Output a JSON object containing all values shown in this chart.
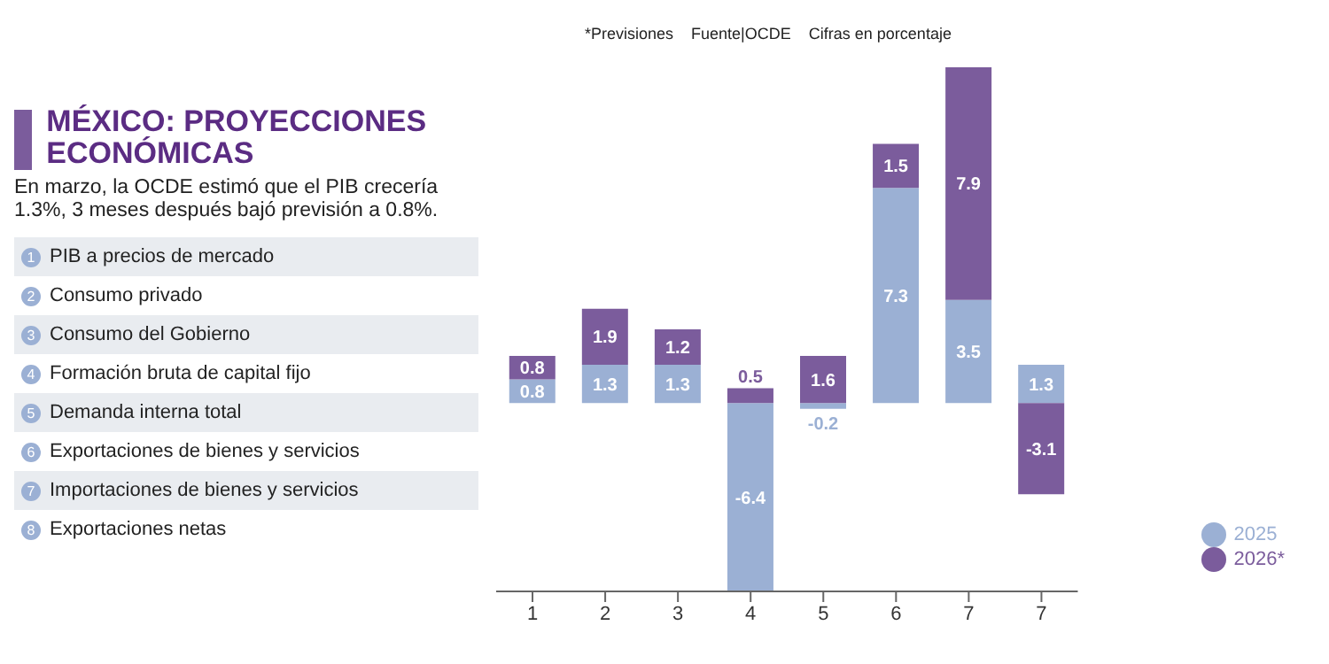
{
  "chart_data": {
    "type": "bar",
    "title": "MÉXICO: PROYECCIONES ECONÓMICAS",
    "subtitle": "En marzo, la OCDE estimó que el PIB crecería 1.3%, 3 meses después bajó previsión a 0.8%.",
    "categories": [
      "1",
      "2",
      "3",
      "4",
      "5",
      "6",
      "7",
      "7"
    ],
    "series": [
      {
        "name": "2025",
        "color": "#9bb0d4",
        "values": [
          0.8,
          1.3,
          1.3,
          -6.4,
          -0.2,
          7.3,
          3.5,
          1.3
        ]
      },
      {
        "name": "2026*",
        "color": "#7b5c9c",
        "values": [
          0.8,
          1.9,
          1.2,
          0.5,
          1.6,
          1.5,
          7.9,
          -3.1
        ]
      }
    ],
    "stacked": true,
    "data_labels": true,
    "legend": "bottom right",
    "grid": false,
    "tick_labels": "x",
    "annotations": [
      "1 PIB a precios de mercado",
      "2 Consumo privado",
      "3 Consumo del Gobierno",
      "4 Formación bruta de capital fijo",
      "5 Demanda interna total",
      "6 Exportaciones de bienes y servicios",
      "7 Importaciones de bienes y servicios",
      "8 Exportaciones netas",
      "*Previsiones",
      "Fuente|OCDE",
      "Cifras en porcentaje"
    ]
  }
}
